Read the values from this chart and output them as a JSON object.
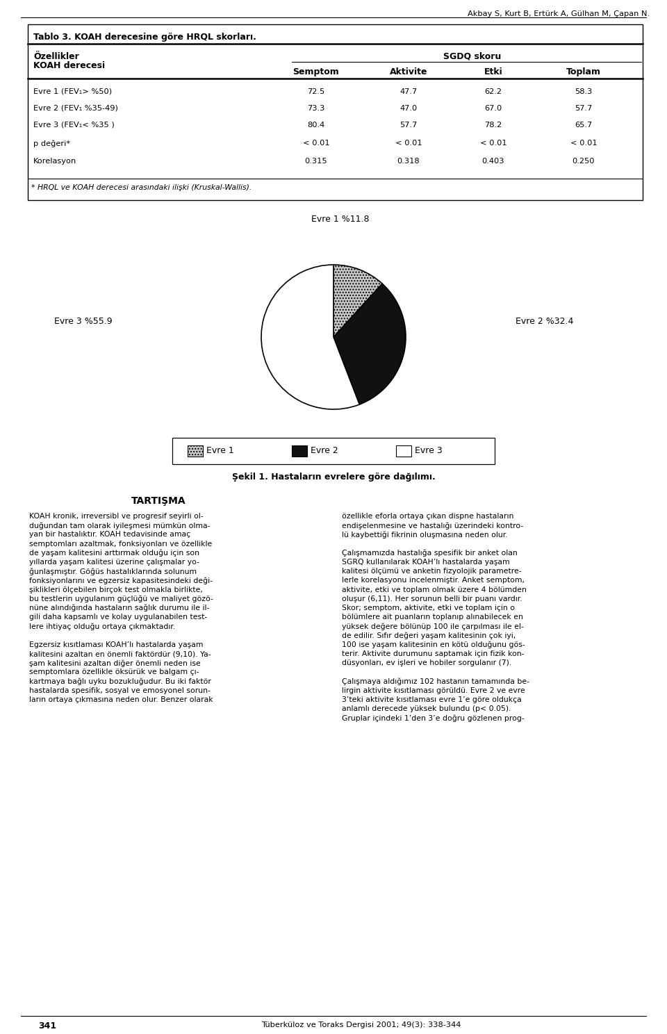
{
  "header_text": "Akbay S, Kurt B, Ertürk A, Gülhan M, Çapan N.",
  "table_title": "Tablo 3. KOAH derecesine göre HRQL skorları.",
  "sgdq_header": "SGDQ skoru",
  "col_sub_headers": [
    "Semptom",
    "Aktivite",
    "Etki",
    "Toplam"
  ],
  "rows": [
    {
      "label": "Evre 1 (FEV₁> %50)",
      "values": [
        "72.5",
        "47.7",
        "62.2",
        "58.3"
      ]
    },
    {
      "label": "Evre 2 (FEV₁ %35-49)",
      "values": [
        "73.3",
        "47.0",
        "67.0",
        "57.7"
      ]
    },
    {
      "label": "Evre 3 (FEV₁< %35 )",
      "values": [
        "80.4",
        "57.7",
        "78.2",
        "65.7"
      ]
    },
    {
      "label": "p değeri*",
      "values": [
        "< 0.01",
        "< 0.01",
        "< 0.01",
        "< 0.01"
      ]
    },
    {
      "label": "Korelasyon",
      "values": [
        "0.315",
        "0.318",
        "0.403",
        "0.250"
      ]
    }
  ],
  "footnote": "* HRQL ve KOAH derecesi arasındaki ilişki (Kruskal-Wallis).",
  "pie_values": [
    11.8,
    32.4,
    55.9
  ],
  "pie_label_top": "Evre 1 %11.8",
  "pie_label_right": "Evre 2 %32.4",
  "pie_label_left": "Evre 3 %55.9",
  "pie_colors": [
    "#c8c8c8",
    "#111111",
    "#ffffff"
  ],
  "pie_hatches": [
    "....",
    "",
    ""
  ],
  "legend_labels": [
    "Evre 1",
    "Evre 2",
    "Evre 3"
  ],
  "legend_colors": [
    "#c8c8c8",
    "#111111",
    "#ffffff"
  ],
  "legend_hatches": [
    "....",
    "",
    ""
  ],
  "figure_caption": "Şekil 1. Hastaların evrelere göre dağılımı.",
  "section_title": "TARTIŞMA",
  "left_col_lines": [
    "KOAH kronik, irreversibl ve progresif seyirli ol-",
    "duğundan tam olarak iyileşmesi mümkün olma-",
    "yan bir hastalıktır. KOAH tedavisinde amaç",
    "semptomları azaltmak, fonksiyonları ve özellikle",
    "de yaşam kalitesini arttırmak olduğu için son",
    "yıllarda yaşam kalitesi üzerine çalışmalar yo-",
    "ğunlaşmıştır. Göğüs hastalıklarında solunum",
    "fonksiyonlarını ve egzersiz kapasitesindeki deği-",
    "şiklikleri ölçebilen birçok test olmakla birlikte,",
    "bu testlerin uygulanım güçlüğü ve maliyet gözö-",
    "nüne alındığında hastaların sağlık durumu ile il-",
    "gili daha kapsamlı ve kolay uygulanabilen test-",
    "lere ihtiyaç olduğu ortaya çıkmaktadır.",
    "",
    "Egzersiz kısıtlaması KOAH’lı hastalarda yaşam",
    "kalitesini azaltan en önemli faktördür (9,10). Ya-",
    "şam kalitesini azaltan diğer önemli neden ise",
    "semptomlara özellikle öksürük ve balgam çı-",
    "kartmaya bağlı uyku bozukluğudur. Bu iki faktör",
    "hastalarda spesifik, sosyal ve emosyonel sorun-",
    "ların ortaya çıkmasına neden olur. Benzer olarak"
  ],
  "right_col_lines": [
    "özellikle eforla ortaya çıkan dispne hastaların",
    "endişelenmesine ve hastalığı üzerindeki kontro-",
    "lü kaybettiği fikrinin oluşmasına neden olur.",
    "",
    "Çalışmamızda hastalığa spesifik bir anket olan",
    "SGRQ kullanılarak KOAH’lı hastalarda yaşam",
    "kalitesi ölçümü ve anketin fizyolojik parametre-",
    "lerle korelasyonu incelenmiştir. Anket semptom,",
    "aktivite, etki ve toplam olmak üzere 4 bölümden",
    "oluşur (6,11). Her sorunun belli bir puanı vardır.",
    "Skor; semptom, aktivite, etki ve toplam için o",
    "bölümlere ait puanların toplanıp alınabilecek en",
    "yüksek değere bölünüp 100 ile çarpılması ile el-",
    "de edilir. Sıfır değeri yaşam kalitesinin çok iyi,",
    "100 ise yaşam kalitesinin en kötü olduğunu gös-",
    "terir. Aktivite durumunu saptamak için fizik kon-",
    "düsyonları, ev işleri ve hobiler sorgulanır (7).",
    "",
    "Çalışmaya aldığımız 102 hastanın tamamında be-",
    "lirgin aktivite kısıtlaması görüldü. Evre 2 ve evre",
    "3’teki aktivite kısıtlaması evre 1’e göre oldukça",
    "anlamlı derecede yüksek bulundu (p< 0.05).",
    "Gruplar içindeki 1’den 3’e doğru gözlenen prog-"
  ],
  "footer_page": "341",
  "footer_journal": "Tüberküloz ve Toraks Dergisi 2001; 49(3): 338-344",
  "bg_color": "#ffffff",
  "text_color": "#000000"
}
